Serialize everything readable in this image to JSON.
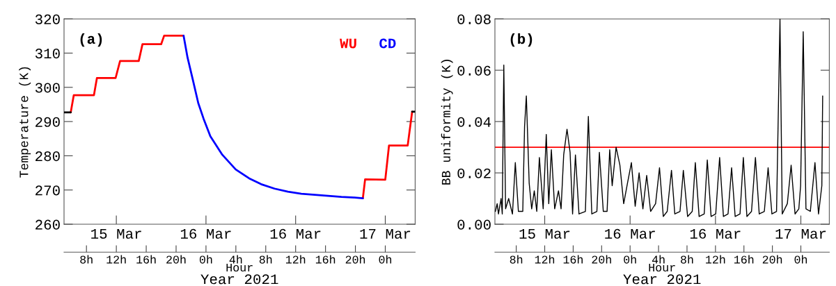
{
  "chart_data": [
    {
      "type": "line",
      "ylabel": "Temperature (K)",
      "xlabel": "Year 2021",
      "x2label": "Hour",
      "annotations": [
        "(a)"
      ],
      "legend": "top right",
      "xlim": [
        "2021-03-15T05:00",
        "2021-03-17T04:00"
      ],
      "xticks": [
        {
          "value": "2021-03-15T12:00",
          "label": "15 Mar"
        },
        {
          "value": "2021-03-16T00:00",
          "label": "16 Mar"
        },
        {
          "value": "2021-03-16T12:00",
          "label": "16 Mar"
        },
        {
          "value": "2021-03-17T00:00",
          "label": "17 Mar"
        }
      ],
      "x2lim": [
        "2021-03-15T05:00",
        "2021-03-17T04:00"
      ],
      "x2ticks": [
        {
          "value": "2021-03-15T08:00",
          "label": "8h"
        },
        {
          "value": "2021-03-15T12:00",
          "label": "12h"
        },
        {
          "value": "2021-03-15T16:00",
          "label": "16h"
        },
        {
          "value": "2021-03-15T20:00",
          "label": "20h"
        },
        {
          "value": "2021-03-16T00:00",
          "label": "0h"
        },
        {
          "value": "2021-03-16T04:00",
          "label": "4h"
        },
        {
          "value": "2021-03-16T08:00",
          "label": "8h"
        },
        {
          "value": "2021-03-16T12:00",
          "label": "12h"
        },
        {
          "value": "2021-03-16T16:00",
          "label": "16h"
        },
        {
          "value": "2021-03-16T20:00",
          "label": "20h"
        },
        {
          "value": "2021-03-17T00:00",
          "label": "0h"
        }
      ],
      "ylim": [
        260,
        320
      ],
      "yticks": [
        260,
        270,
        280,
        290,
        300,
        310,
        320
      ],
      "series": [
        {
          "name": "WU",
          "color": "#ff0000",
          "x": [
            "2021-03-15T05:54",
            "2021-03-15T06:18",
            "2021-03-15T09:00",
            "2021-03-15T09:24",
            "2021-03-15T11:54",
            "2021-03-15T12:30",
            "2021-03-15T15:00",
            "2021-03-15T15:30",
            "2021-03-15T18:00",
            "2021-03-15T18:24",
            "2021-03-15T21:00",
            "2021-03-16T09:00",
            "2021-03-16T21:00",
            "2021-03-16T21:18",
            "2021-03-17T00:00",
            "2021-03-17T00:30",
            "2021-03-17T03:00",
            "2021-03-17T03:36"
          ],
          "values": [
            292.7,
            297.7,
            297.7,
            302.7,
            302.7,
            307.7,
            307.7,
            312.6,
            312.6,
            315.1,
            315.1,
            null,
            267.6,
            273.1,
            273.0,
            283.0,
            283.0,
            292.9
          ]
        },
        {
          "name": "CD",
          "color": "#0000ff",
          "x": [
            "2021-03-15T21:00",
            "2021-03-15T21:32",
            "2021-03-15T22:15",
            "2021-03-15T22:58",
            "2021-03-15T23:41",
            "2021-03-16T00:35",
            "2021-03-16T02:11",
            "2021-03-16T03:59",
            "2021-03-16T05:47",
            "2021-03-16T07:23",
            "2021-03-16T09:11",
            "2021-03-16T10:58",
            "2021-03-16T12:46",
            "2021-03-16T14:34",
            "2021-03-16T16:21",
            "2021-03-16T18:08",
            "2021-03-16T19:56",
            "2021-03-16T21:00"
          ],
          "values": [
            315.1,
            308.7,
            302.1,
            295.4,
            290.8,
            285.7,
            280.3,
            276.0,
            273.4,
            271.7,
            270.4,
            269.5,
            268.9,
            268.6,
            268.3,
            268.0,
            267.8,
            267.6
          ]
        },
        {
          "color": "#000000",
          "x": [
            "2021-03-15T05:00",
            "2021-03-15T05:54"
          ],
          "values": [
            292.7,
            292.7
          ]
        },
        {
          "color": "#000000",
          "x": [
            "2021-03-17T03:36",
            "2021-03-17T04:00"
          ],
          "values": [
            292.9,
            292.9
          ]
        }
      ]
    },
    {
      "type": "line",
      "ylabel": "BB uniformity (K)",
      "xlabel": "Year 2021",
      "x2label": "Hour",
      "annotations": [
        "(b)"
      ],
      "xlim": [
        "2021-03-15T05:00",
        "2021-03-17T04:00"
      ],
      "xticks": [
        {
          "value": "2021-03-15T12:00",
          "label": "15 Mar"
        },
        {
          "value": "2021-03-16T00:00",
          "label": "16 Mar"
        },
        {
          "value": "2021-03-16T12:00",
          "label": "16 Mar"
        },
        {
          "value": "2021-03-17T00:00",
          "label": "17 Mar"
        }
      ],
      "x2lim": [
        "2021-03-15T05:00",
        "2021-03-17T04:00"
      ],
      "x2ticks": [
        {
          "value": "2021-03-15T08:00",
          "label": "8h"
        },
        {
          "value": "2021-03-15T12:00",
          "label": "12h"
        },
        {
          "value": "2021-03-15T16:00",
          "label": "16h"
        },
        {
          "value": "2021-03-15T20:00",
          "label": "20h"
        },
        {
          "value": "2021-03-16T00:00",
          "label": "0h"
        },
        {
          "value": "2021-03-16T04:00",
          "label": "4h"
        },
        {
          "value": "2021-03-16T08:00",
          "label": "8h"
        },
        {
          "value": "2021-03-16T12:00",
          "label": "12h"
        },
        {
          "value": "2021-03-16T16:00",
          "label": "16h"
        },
        {
          "value": "2021-03-16T20:00",
          "label": "20h"
        },
        {
          "value": "2021-03-17T00:00",
          "label": "0h"
        }
      ],
      "ylim": [
        0,
        0.08
      ],
      "yticks": [
        {
          "value": 0,
          "label": "0.00"
        },
        {
          "value": 0.02,
          "label": "0.02"
        },
        {
          "value": 0.04,
          "label": "0.04"
        },
        {
          "value": 0.06,
          "label": "0.06"
        },
        {
          "value": 0.08,
          "label": "0.08"
        }
      ],
      "ref_lines": [
        {
          "axis": "y",
          "value": 0.03,
          "color": "#ff0000"
        }
      ],
      "series": [
        {
          "color": "#000000",
          "x": [
            "2021-03-15T05:04",
            "2021-03-15T05:19",
            "2021-03-15T05:30",
            "2021-03-15T05:52",
            "2021-03-15T06:02",
            "2021-03-15T06:15",
            "2021-03-15T06:30",
            "2021-03-15T06:56",
            "2021-03-15T07:28",
            "2021-03-15T07:52",
            "2021-03-15T08:18",
            "2021-03-15T08:55",
            "2021-03-15T09:10",
            "2021-03-15T09:25",
            "2021-03-15T09:49",
            "2021-03-15T10:10",
            "2021-03-15T10:32",
            "2021-03-15T10:53",
            "2021-03-15T11:15",
            "2021-03-15T11:47",
            "2021-03-15T12:13",
            "2021-03-15T12:34",
            "2021-03-15T12:56",
            "2021-03-15T13:24",
            "2021-03-15T13:56",
            "2021-03-15T14:18",
            "2021-03-15T14:40",
            "2021-03-15T15:08",
            "2021-03-15T15:34",
            "2021-03-15T15:55",
            "2021-03-15T16:19",
            "2021-03-15T16:49",
            "2021-03-15T17:43",
            "2021-03-15T18:08",
            "2021-03-15T18:37",
            "2021-03-15T19:20",
            "2021-03-15T19:41",
            "2021-03-15T20:14",
            "2021-03-15T20:46",
            "2021-03-15T21:08",
            "2021-03-15T21:29",
            "2021-03-15T22:02",
            "2021-03-15T22:34",
            "2021-03-15T23:06",
            "2021-03-15T23:38",
            "2021-03-16T00:11",
            "2021-03-16T00:43",
            "2021-03-16T01:16",
            "2021-03-16T01:48",
            "2021-03-16T02:20",
            "2021-03-16T02:53",
            "2021-03-16T03:35",
            "2021-03-16T04:08",
            "2021-03-16T04:40",
            "2021-03-16T05:13",
            "2021-03-16T05:49",
            "2021-03-16T06:17",
            "2021-03-16T07:01",
            "2021-03-16T07:29",
            "2021-03-16T08:05",
            "2021-03-16T08:44",
            "2021-03-16T09:10",
            "2021-03-16T09:42",
            "2021-03-16T10:25",
            "2021-03-16T10:51",
            "2021-03-16T11:23",
            "2021-03-16T12:02",
            "2021-03-16T12:35",
            "2021-03-16T13:07",
            "2021-03-16T13:46",
            "2021-03-16T14:16",
            "2021-03-16T14:46",
            "2021-03-16T15:27",
            "2021-03-16T15:55",
            "2021-03-16T16:25",
            "2021-03-16T17:04",
            "2021-03-16T17:37",
            "2021-03-16T18:09",
            "2021-03-16T18:52",
            "2021-03-16T19:24",
            "2021-03-16T19:56",
            "2021-03-16T20:35",
            "2021-03-16T21:04",
            "2021-03-16T21:23",
            "2021-03-16T22:06",
            "2021-03-16T22:38",
            "2021-03-16T23:11",
            "2021-03-16T23:43",
            "2021-03-16T23:58",
            "2021-03-17T00:20",
            "2021-03-17T00:43",
            "2021-03-17T01:20",
            "2021-03-17T01:59",
            "2021-03-17T02:29",
            "2021-03-17T02:57",
            "2021-03-17T03:04"
          ],
          "values": [
            0.005,
            0.008,
            0.004,
            0.01,
            0.004,
            0.062,
            0.006,
            0.01,
            0.004,
            0.024,
            0.005,
            0.005,
            0.038,
            0.05,
            0.016,
            0.006,
            0.013,
            0.005,
            0.026,
            0.006,
            0.035,
            0.008,
            0.029,
            0.006,
            0.013,
            0.006,
            0.027,
            0.037,
            0.028,
            0.004,
            0.027,
            0.004,
            0.005,
            0.042,
            0.004,
            0.005,
            0.028,
            0.005,
            0.005,
            0.029,
            0.015,
            0.03,
            0.023,
            0.008,
            0.016,
            0.024,
            0.007,
            0.02,
            0.006,
            0.019,
            0.005,
            0.008,
            0.022,
            0.003,
            0.005,
            0.021,
            0.004,
            0.005,
            0.021,
            0.003,
            0.005,
            0.024,
            0.003,
            0.004,
            0.025,
            0.003,
            0.004,
            0.026,
            0.003,
            0.004,
            0.022,
            0.003,
            0.004,
            0.026,
            0.003,
            0.005,
            0.026,
            0.004,
            0.005,
            0.022,
            0.004,
            0.005,
            0.08,
            0.004,
            0.008,
            0.023,
            0.004,
            0.006,
            0.015,
            0.075,
            0.006,
            0.005,
            0.024,
            0.004,
            0.015,
            0.05
          ]
        }
      ]
    }
  ]
}
